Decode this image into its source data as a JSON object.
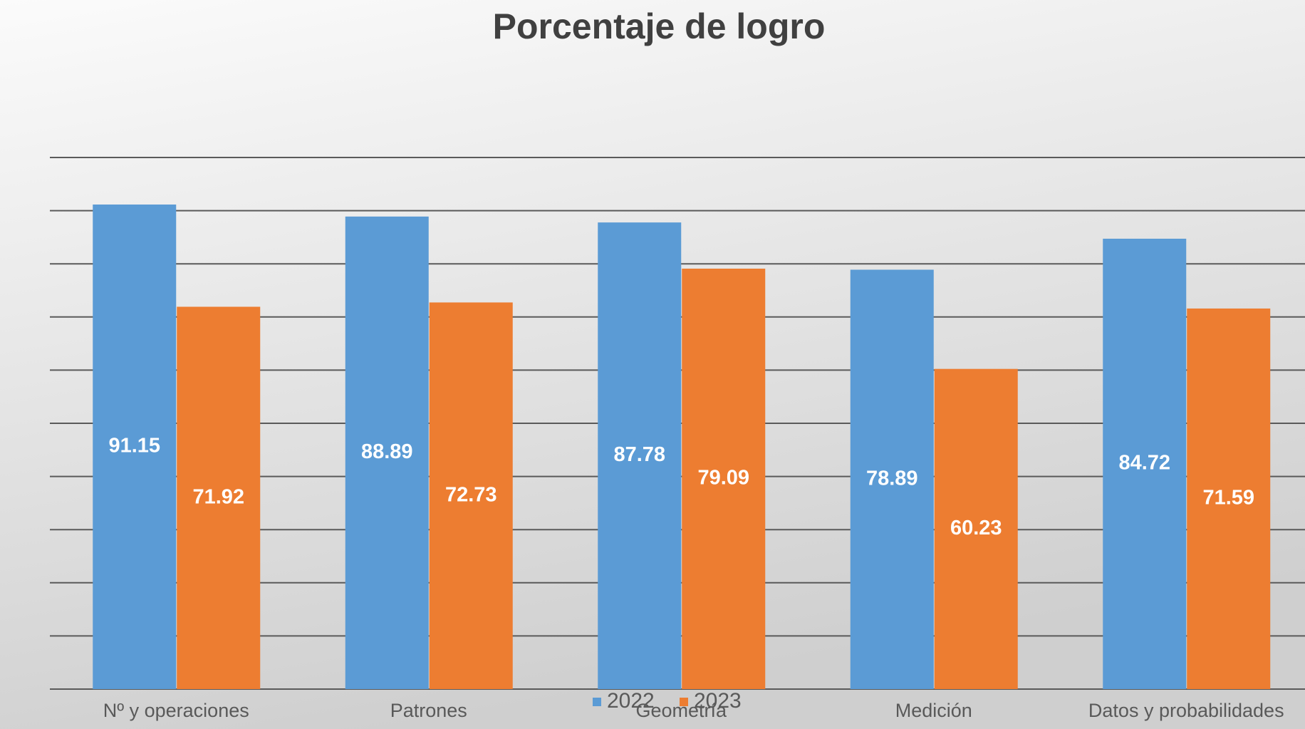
{
  "chart_data": {
    "type": "bar",
    "title": "Porcentaje de logro",
    "categories": [
      "Nº y operaciones",
      "Patrones",
      "Geometría",
      "Medición",
      "Datos y probabilidades"
    ],
    "series": [
      {
        "name": "2022",
        "color": "#5b9bd5",
        "values": [
          91.15,
          88.89,
          87.78,
          78.89,
          84.72
        ]
      },
      {
        "name": "2023",
        "color": "#ed7d31",
        "values": [
          71.92,
          72.73,
          79.09,
          60.23,
          71.59
        ]
      }
    ],
    "ylim": [
      0,
      100
    ],
    "yticks": [
      0,
      10,
      20,
      30,
      40,
      50,
      60,
      70,
      80,
      90,
      100
    ],
    "grid": true,
    "legend": "bottom"
  }
}
